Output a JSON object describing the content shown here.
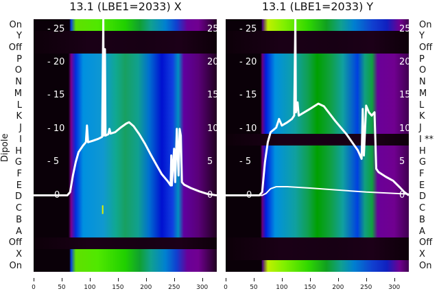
{
  "chart_data": [
    {
      "type": "heatmap",
      "title": "13.1 (LBE1=2033) X",
      "ylabel": "Dipole",
      "row_labels": [
        "On",
        "Y",
        "Off",
        "P",
        "O",
        "N",
        "M",
        "L",
        "K",
        "J",
        "I",
        "H",
        "G",
        "F",
        "E",
        "D",
        "C",
        "B",
        "A",
        "Off",
        "X",
        "On"
      ],
      "row_types": [
        "on",
        "dark",
        "dark",
        "main",
        "main",
        "main",
        "main",
        "main",
        "main",
        "main",
        "main",
        "main",
        "main",
        "main",
        "main",
        "main",
        "main",
        "main",
        "main",
        "dark",
        "on",
        "on"
      ],
      "xlim": [
        0,
        326
      ],
      "x_ticks": [
        "0",
        "50",
        "100",
        "150",
        "200",
        "250",
        "300"
      ],
      "x_tick_values": [
        0,
        50,
        100,
        150,
        200,
        250,
        300
      ],
      "overlay_ylim": [
        -11.5,
        26.5
      ],
      "overlay_y_ticks": [
        "0",
        "5",
        "10",
        "15",
        "20",
        "25"
      ],
      "overlay_y_tick_values": [
        0,
        5,
        10,
        15,
        20,
        25
      ],
      "series": [
        {
          "name": "profile",
          "points": [
            [
              0,
              0
            ],
            [
              60,
              0
            ],
            [
              65,
              0.5
            ],
            [
              70,
              3
            ],
            [
              75,
              5
            ],
            [
              80,
              6.5
            ],
            [
              88,
              7.5
            ],
            [
              93,
              8
            ],
            [
              95,
              10.5
            ],
            [
              97,
              8
            ],
            [
              105,
              8.2
            ],
            [
              115,
              8.5
            ],
            [
              122,
              8.8
            ],
            [
              124,
              26.5
            ],
            [
              125,
              9
            ],
            [
              127,
              22
            ],
            [
              128,
              9
            ],
            [
              133,
              9.2
            ],
            [
              135,
              10
            ],
            [
              137,
              9.3
            ],
            [
              145,
              9.5
            ],
            [
              155,
              10.2
            ],
            [
              165,
              10.8
            ],
            [
              170,
              11
            ],
            [
              178,
              10.4
            ],
            [
              188,
              9.2
            ],
            [
              198,
              7.8
            ],
            [
              208,
              6.2
            ],
            [
              218,
              4.7
            ],
            [
              228,
              3.2
            ],
            [
              238,
              2.2
            ],
            [
              244,
              1.5
            ],
            [
              245,
              6
            ],
            [
              246,
              1.5
            ],
            [
              250,
              7
            ],
            [
              252,
              2
            ],
            [
              255,
              10
            ],
            [
              258,
              3
            ],
            [
              260,
              10
            ],
            [
              262,
              9
            ],
            [
              264,
              2
            ],
            [
              268,
              1.6
            ],
            [
              280,
              1.1
            ],
            [
              295,
              0.6
            ],
            [
              310,
              0.2
            ],
            [
              326,
              0
            ]
          ]
        },
        {
          "name": "spike-minor",
          "points": [
            [
              123,
              -1.5
            ],
            [
              123,
              -2.8
            ]
          ]
        }
      ]
    },
    {
      "type": "heatmap",
      "title": "13.1 (LBE1=2033) Y",
      "row_labels": [
        "On",
        "Y",
        "Off",
        "P",
        "O",
        "N",
        "M",
        "L",
        "K",
        "J",
        "I **",
        "H",
        "G",
        "F",
        "E",
        "D",
        "C",
        "B",
        "A",
        "Off",
        "X",
        "On"
      ],
      "row_types": [
        "onR",
        "dark",
        "dark",
        "mainR",
        "mainR",
        "mainR",
        "mainR",
        "mainR",
        "mainR",
        "mainR",
        "dark",
        "mainR",
        "mainR",
        "mainR",
        "mainR",
        "mainR",
        "mainR",
        "mainR",
        "mainR",
        "dark",
        "dark",
        "onR"
      ],
      "xlim": [
        0,
        326
      ],
      "x_ticks": [
        "0",
        "50",
        "100",
        "150",
        "200",
        "250",
        "300"
      ],
      "x_tick_values": [
        0,
        50,
        100,
        150,
        200,
        250,
        300
      ],
      "overlay_ylim": [
        -11.5,
        26.5
      ],
      "overlay_y_ticks": [
        "0",
        "5",
        "10",
        "15",
        "20",
        "25"
      ],
      "overlay_y_tick_values": [
        0,
        5,
        10,
        15,
        20,
        25
      ],
      "series": [
        {
          "name": "profile",
          "points": [
            [
              0,
              0
            ],
            [
              60,
              0
            ],
            [
              65,
              0.5
            ],
            [
              70,
              5
            ],
            [
              75,
              8
            ],
            [
              80,
              9.5
            ],
            [
              90,
              10.2
            ],
            [
              95,
              11.5
            ],
            [
              100,
              10.5
            ],
            [
              110,
              11
            ],
            [
              118,
              11.5
            ],
            [
              122,
              12
            ],
            [
              124,
              26.5
            ],
            [
              125,
              12.5
            ],
            [
              128,
              14
            ],
            [
              130,
              12
            ],
            [
              140,
              12.5
            ],
            [
              150,
              13
            ],
            [
              165,
              13.8
            ],
            [
              175,
              13.4
            ],
            [
              185,
              12.3
            ],
            [
              195,
              11.2
            ],
            [
              205,
              10.2
            ],
            [
              215,
              9.2
            ],
            [
              225,
              8
            ],
            [
              235,
              6.8
            ],
            [
              242,
              5.5
            ],
            [
              244,
              13
            ],
            [
              246,
              6
            ],
            [
              250,
              13.5
            ],
            [
              255,
              12.5
            ],
            [
              260,
              12
            ],
            [
              265,
              12.5
            ],
            [
              268,
              4
            ],
            [
              272,
              3.5
            ],
            [
              285,
              2.8
            ],
            [
              298,
              2.2
            ],
            [
              310,
              1.2
            ],
            [
              318,
              0.5
            ],
            [
              326,
              0
            ]
          ]
        },
        {
          "name": "baseline",
          "points": [
            [
              0,
              0
            ],
            [
              65,
              0
            ],
            [
              72,
              0.3
            ],
            [
              80,
              1
            ],
            [
              90,
              1.3
            ],
            [
              110,
              1.3
            ],
            [
              150,
              1.1
            ],
            [
              200,
              0.8
            ],
            [
              250,
              0.5
            ],
            [
              300,
              0.3
            ],
            [
              326,
              0.2
            ]
          ]
        }
      ]
    }
  ]
}
